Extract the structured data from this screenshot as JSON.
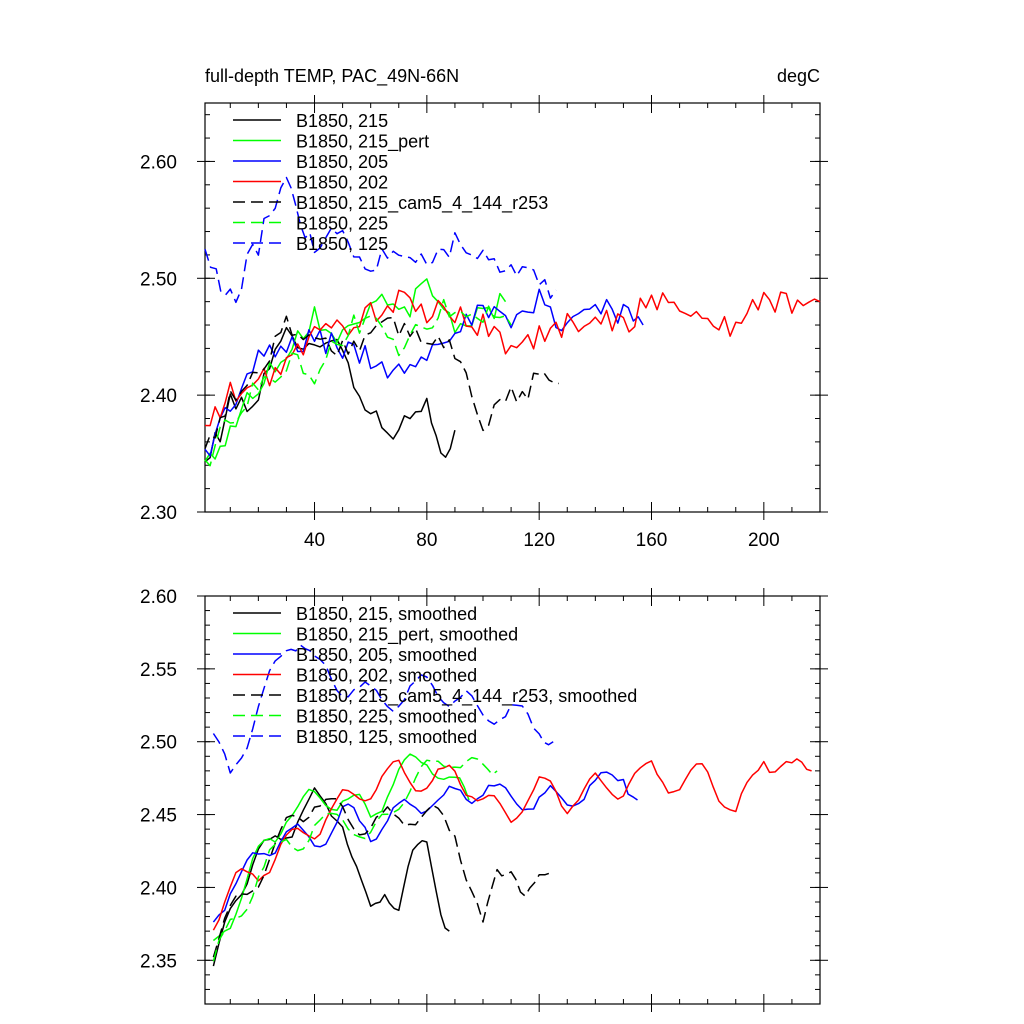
{
  "chart_data": [
    {
      "type": "line",
      "title": "full-depth TEMP, PAC_49N-66N",
      "units": "degC",
      "xlabel": "",
      "ylabel": "",
      "xlim": [
        1,
        220
      ],
      "ylim": [
        2.3,
        2.65
      ],
      "x_ticks": [
        40,
        80,
        120,
        160,
        200
      ],
      "y_ticks": [
        2.3,
        2.4,
        2.5,
        2.6
      ],
      "y_tick_labels": [
        "2.30",
        "2.40",
        "2.50",
        "2.60"
      ],
      "legend_position": "top-left",
      "series": [
        {
          "name": "B1850, 215",
          "color": "#000000",
          "dash": "solid",
          "x_end": 90,
          "x": [
            1,
            10,
            20,
            30,
            40,
            50,
            60,
            70,
            80,
            85,
            90
          ],
          "values": [
            2.34,
            2.39,
            2.4,
            2.45,
            2.45,
            2.44,
            2.38,
            2.37,
            2.39,
            2.34,
            2.37
          ]
        },
        {
          "name": "B1850, 215_pert",
          "color": "#00ff00",
          "dash": "solid",
          "x_end": 108,
          "x": [
            1,
            10,
            20,
            30,
            40,
            50,
            60,
            70,
            80,
            90,
            100,
            108
          ],
          "values": [
            2.34,
            2.37,
            2.41,
            2.44,
            2.47,
            2.45,
            2.48,
            2.47,
            2.49,
            2.46,
            2.47,
            2.48
          ]
        },
        {
          "name": "B1850, 205",
          "color": "#0000ff",
          "dash": "solid",
          "x_end": 157,
          "x": [
            1,
            10,
            20,
            30,
            40,
            50,
            60,
            70,
            80,
            90,
            100,
            110,
            120,
            130,
            140,
            150,
            157
          ],
          "values": [
            2.35,
            2.39,
            2.43,
            2.44,
            2.45,
            2.44,
            2.43,
            2.42,
            2.44,
            2.46,
            2.47,
            2.46,
            2.48,
            2.46,
            2.48,
            2.47,
            2.46
          ]
        },
        {
          "name": "B1850, 202",
          "color": "#ff0000",
          "dash": "solid",
          "x_end": 220,
          "x": [
            1,
            10,
            20,
            30,
            40,
            50,
            60,
            70,
            80,
            90,
            100,
            110,
            120,
            130,
            140,
            150,
            160,
            170,
            180,
            190,
            200,
            210,
            220
          ],
          "values": [
            2.37,
            2.4,
            2.41,
            2.43,
            2.45,
            2.46,
            2.47,
            2.48,
            2.47,
            2.47,
            2.46,
            2.44,
            2.45,
            2.46,
            2.47,
            2.46,
            2.48,
            2.48,
            2.46,
            2.46,
            2.48,
            2.48,
            2.48
          ]
        },
        {
          "name": "B1850, 215_cam5_4_144_r253",
          "color": "#000000",
          "dash": "dashed",
          "x_end": 127,
          "x": [
            1,
            10,
            20,
            30,
            40,
            50,
            60,
            70,
            80,
            90,
            100,
            110,
            120,
            127
          ],
          "values": [
            2.35,
            2.4,
            2.42,
            2.46,
            2.45,
            2.44,
            2.45,
            2.46,
            2.45,
            2.44,
            2.38,
            2.4,
            2.41,
            2.41
          ]
        },
        {
          "name": "B1850, 225",
          "color": "#00ff00",
          "dash": "dashed",
          "x_end": 110,
          "x": [
            1,
            10,
            20,
            30,
            40,
            50,
            60,
            70,
            80,
            90,
            100,
            110
          ],
          "values": [
            2.34,
            2.38,
            2.41,
            2.43,
            2.42,
            2.45,
            2.47,
            2.44,
            2.46,
            2.48,
            2.47,
            2.46
          ]
        },
        {
          "name": "B1850, 125",
          "color": "#0000ff",
          "dash": "dashed",
          "x_end": 126,
          "x": [
            1,
            5,
            10,
            20,
            30,
            35,
            40,
            50,
            60,
            70,
            80,
            90,
            100,
            110,
            120,
            126
          ],
          "values": [
            2.52,
            2.5,
            2.48,
            2.53,
            2.59,
            2.55,
            2.53,
            2.54,
            2.51,
            2.53,
            2.52,
            2.53,
            2.52,
            2.51,
            2.5,
            2.49
          ]
        }
      ]
    },
    {
      "type": "line",
      "title": "",
      "xlabel": "",
      "ylabel": "",
      "xlim": [
        1,
        220
      ],
      "ylim": [
        2.32,
        2.6
      ],
      "x_ticks": [
        40,
        80,
        120,
        160,
        200
      ],
      "y_ticks": [
        2.35,
        2.4,
        2.45,
        2.5,
        2.55,
        2.6
      ],
      "y_tick_labels": [
        "2.35",
        "2.40",
        "2.45",
        "2.50",
        "2.55",
        "2.60"
      ],
      "legend_position": "top-left",
      "series": [
        {
          "name": "B1850, 215, smoothed",
          "color": "#000000",
          "dash": "solid",
          "x_end": 88,
          "x": [
            4,
            10,
            20,
            30,
            40,
            50,
            55,
            60,
            65,
            70,
            75,
            80,
            85,
            88
          ],
          "values": [
            2.34,
            2.39,
            2.42,
            2.44,
            2.46,
            2.45,
            2.41,
            2.38,
            2.4,
            2.39,
            2.42,
            2.43,
            2.39,
            2.37
          ]
        },
        {
          "name": "B1850, 215_pert, smoothed",
          "color": "#00ff00",
          "dash": "solid",
          "x_end": 95,
          "x": [
            4,
            10,
            20,
            30,
            40,
            50,
            60,
            70,
            80,
            90,
            95
          ],
          "values": [
            2.36,
            2.38,
            2.42,
            2.45,
            2.46,
            2.46,
            2.45,
            2.48,
            2.49,
            2.47,
            2.46
          ]
        },
        {
          "name": "B1850, 205, smoothed",
          "color": "#0000ff",
          "dash": "solid",
          "x_end": 155,
          "x": [
            4,
            10,
            20,
            30,
            40,
            50,
            60,
            70,
            80,
            90,
            100,
            110,
            120,
            130,
            140,
            150,
            155
          ],
          "values": [
            2.38,
            2.4,
            2.42,
            2.44,
            2.43,
            2.45,
            2.44,
            2.45,
            2.46,
            2.46,
            2.47,
            2.46,
            2.46,
            2.46,
            2.47,
            2.48,
            2.46
          ]
        },
        {
          "name": "B1850, 202, smoothed",
          "color": "#ff0000",
          "dash": "solid",
          "x_end": 217,
          "x": [
            4,
            10,
            20,
            30,
            40,
            50,
            60,
            70,
            80,
            90,
            100,
            110,
            120,
            130,
            140,
            150,
            160,
            170,
            180,
            190,
            200,
            210,
            217
          ],
          "values": [
            2.38,
            2.4,
            2.41,
            2.43,
            2.44,
            2.46,
            2.47,
            2.48,
            2.47,
            2.48,
            2.46,
            2.45,
            2.47,
            2.46,
            2.47,
            2.47,
            2.48,
            2.47,
            2.48,
            2.45,
            2.49,
            2.48,
            2.48
          ]
        },
        {
          "name": "B1850, 215_cam5_4_144_r253, smoothed",
          "color": "#000000",
          "dash": "dashed",
          "x_end": 124,
          "x": [
            4,
            10,
            20,
            30,
            40,
            50,
            60,
            70,
            80,
            90,
            100,
            105,
            110,
            115,
            120,
            124
          ],
          "values": [
            2.36,
            2.38,
            2.41,
            2.44,
            2.46,
            2.45,
            2.44,
            2.45,
            2.45,
            2.44,
            2.37,
            2.41,
            2.42,
            2.39,
            2.4,
            2.41
          ]
        },
        {
          "name": "B1850, 225, smoothed",
          "color": "#00ff00",
          "dash": "dashed",
          "x_end": 105,
          "x": [
            4,
            10,
            20,
            30,
            40,
            50,
            60,
            70,
            80,
            90,
            100,
            105
          ],
          "values": [
            2.35,
            2.37,
            2.41,
            2.43,
            2.44,
            2.45,
            2.43,
            2.46,
            2.48,
            2.49,
            2.48,
            2.48
          ]
        },
        {
          "name": "B1850, 125, smoothed",
          "color": "#0000ff",
          "dash": "dashed",
          "x_end": 125,
          "x": [
            4,
            10,
            20,
            30,
            35,
            40,
            50,
            60,
            70,
            80,
            90,
            100,
            110,
            120,
            125
          ],
          "values": [
            2.5,
            2.48,
            2.52,
            2.57,
            2.57,
            2.55,
            2.54,
            2.53,
            2.53,
            2.54,
            2.53,
            2.52,
            2.52,
            2.51,
            2.5
          ]
        }
      ]
    }
  ]
}
